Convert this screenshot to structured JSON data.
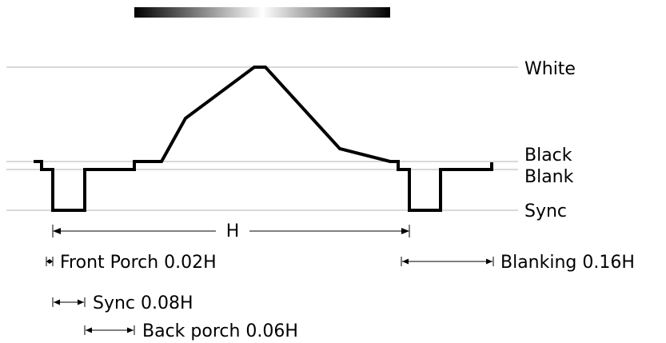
{
  "levels": {
    "white": "White",
    "black": "Black",
    "blank": "Blank",
    "sync": "Sync"
  },
  "line_period": "H",
  "intervals": {
    "front_porch": "Front Porch 0.02H",
    "sync": "Sync 0.08H",
    "back_porch": "Back porch 0.06H",
    "blanking": "Blanking 0.16H"
  },
  "colors": {
    "waveform": "#000000",
    "reference_line": "#b3b3b3",
    "gradient_edge": "#000000",
    "gradient_center": "#ffffff"
  }
}
